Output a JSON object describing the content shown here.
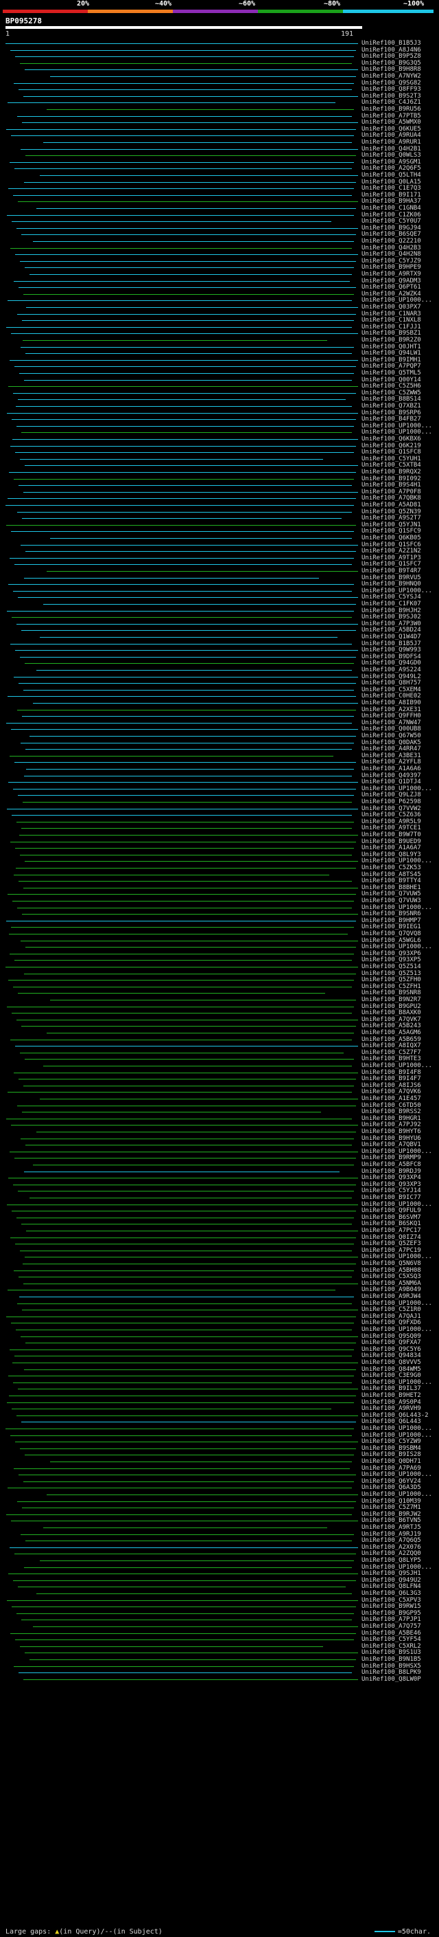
{
  "legend": {
    "percent_labels": [
      "20%",
      "~40%",
      "~60%",
      "~80%",
      "~100%"
    ],
    "colors": [
      "#d81e1e",
      "#f07c1e",
      "#8c2bb4",
      "#1aa01a",
      "#1ec6e6"
    ]
  },
  "query": {
    "id": "BP095278",
    "start": "1",
    "end": "191"
  },
  "colors": {
    "cyan": "#1ec6e6",
    "green": "#21b021"
  },
  "hits": [
    "UniRef100_B1B5J3",
    "UniRef100_A8J4N6",
    "UniRef100_B9P5Z8",
    "UniRef100_B9G3Q5",
    "UniRef100_B9H8R8",
    "UniRef100_A7NYW2",
    "UniRef100_Q9SG82",
    "UniRef100_Q8FF93",
    "UniRef100_B9S2T3",
    "UniRef100_C4J6Z1",
    "UniRef100_B9RU56",
    "UniRef100_A7PTB5",
    "UniRef100_A5WMX0",
    "UniRef100_Q6KUE5",
    "UniRef100_A9RUA4",
    "UniRef100_A9RUR1",
    "UniRef100_Q4H2B1",
    "UniRef100_Q0WLS3",
    "UniRef100_A9SGM1",
    "UniRef100_A2Q6F5",
    "UniRef100_Q5LTH4",
    "UniRef100_Q0LA15",
    "UniRef100_C1E7Q3",
    "UniRef100_B9I171",
    "UniRef100_B9HA37",
    "UniRef100_C1GNB4",
    "UniRef100_C1ZK06",
    "UniRef100_C5Y0U7",
    "UniRef100_B9GJ94",
    "UniRef100_B6SQE7",
    "UniRef100_Q2Z210",
    "UniRef100_Q4H2B3",
    "UniRef100_Q4H2N8",
    "UniRef100_C5YJZ9",
    "UniRef100_B9HPE9",
    "UniRef100_A9RTX9",
    "UniRef100_Q9ADM3",
    "UniRef100_Q6PT61",
    "UniRef100_A2WZK4",
    "UniRef100_UP1000...",
    "UniRef100_Q03PX7",
    "UniRef100_C1NAR3",
    "UniRef100_C1NXL8",
    "UniRef100_C1FJJ1",
    "UniRef100_B9SBZ1",
    "UniRef100_B9R2Z0",
    "UniRef100_Q0JHT1",
    "UniRef100_Q94LW1",
    "UniRef100_B9IMH1",
    "UniRef100_A7PQP7",
    "UniRef100_Q5TML5",
    "UniRef100_Q00Y14",
    "UniRef100_C5Z5H6",
    "UniRef100_C5ZWW5",
    "UniRef100_B8BS14",
    "UniRef100_Q7XBZ1",
    "UniRef100_B9SRP6",
    "UniRef100_B4FB27",
    "UniRef100_UP1000...",
    "UniRef100_UP1000...",
    "UniRef100_Q6KBX6",
    "UniRef100_Q6K219",
    "UniRef100_Q1SFC8",
    "UniRef100_C5YUH1",
    "UniRef100_C5XTB4",
    "UniRef100_B9RQX2",
    "UniRef100_B9I092",
    "UniRef100_B9S4H1",
    "UniRef100_A7P0F8",
    "UniRef100_A7QBK8",
    "UniRef100_A5AD81",
    "UniRef100_Q5ZN39",
    "UniRef100_A9S2T7",
    "UniRef100_Q5YJN1",
    "UniRef100_Q1SFC9",
    "UniRef100_Q6KB05",
    "UniRef100_Q1SFC6",
    "UniRef100_A2Z1N2",
    "UniRef100_A9T1P3",
    "UniRef100_Q1SFC7",
    "UniRef100_B9T4R7",
    "UniRef100_B9RVU5",
    "UniRef100_B9HNQ0",
    "UniRef100_UP1000...",
    "UniRef100_C5YSJ4",
    "UniRef100_C1FK07",
    "UniRef100_B9HJH2",
    "UniRef100_B9SJ02",
    "UniRef100_A7P3W0",
    "UniRef100_A5BD24",
    "UniRef100_Q1W4D7",
    "UniRef100_B1B5J7",
    "UniRef100_Q9W993",
    "UniRef100_B9DFS4",
    "UniRef100_Q94GD0",
    "UniRef100_A9S224",
    "UniRef100_Q949L2",
    "UniRef100_Q8H757",
    "UniRef100_C5XEM4",
    "UniRef100_C0HE02",
    "UniRef100_A8IB90",
    "UniRef100_A2XE31",
    "UniRef100_Q9FFH0",
    "UniRef100_A7NW47",
    "UniRef100_Q00UB8",
    "UniRef100_Q67W50",
    "UniRef100_Q0DAK5",
    "UniRef100_A4RR47",
    "UniRef100_A3BE31",
    "UniRef100_A2YFL8",
    "UniRef100_A1A6A6",
    "UniRef100_Q49397",
    "UniRef100_Q1DTJ4",
    "UniRef100_UP1000...",
    "UniRef100_Q9LZJ8",
    "UniRef100_P62598",
    "UniRef100_Q7VVW2",
    "UniRef100_C5Z636",
    "UniRef100_A9R5L9",
    "UniRef100_A9TCE1",
    "UniRef100_B9W7T0",
    "UniRef100_B9UED9",
    "UniRef100_A1A6A7",
    "UniRef100_Q8L9Y3",
    "UniRef100_UP1000...",
    "UniRef100_C5ZK53",
    "UniRef100_A8TS45",
    "UniRef100_B9TTY4",
    "UniRef100_B8BHE1",
    "UniRef100_Q7VUW5",
    "UniRef100_Q7VUW3",
    "UniRef100_UP1000...",
    "UniRef100_B9SNR6",
    "UniRef100_B9HMP7",
    "UniRef100_B9IEG1",
    "UniRef100_Q7QVQ8",
    "UniRef100_A5WGL6",
    "UniRef100_UP1000...",
    "UniRef100_Q93XP6",
    "UniRef100_Q93XP5",
    "UniRef100_Q5Z514",
    "UniRef100_Q5Z513",
    "UniRef100_Q5ZFH0",
    "UniRef100_C5ZFH1",
    "UniRef100_B9SNR8",
    "UniRef100_B9N2R7",
    "UniRef100_B9GPU2",
    "UniRef100_B8AXK0",
    "UniRef100_A7QVK7",
    "UniRef100_A5B243",
    "UniRef100_A5AGM6",
    "UniRef100_A5B659",
    "UniRef100_A8IQX7",
    "UniRef100_C5Z7F7",
    "UniRef100_B9HTE3",
    "UniRef100_UP1000...",
    "UniRef100_B9I4F8",
    "UniRef100_B9I4F7",
    "UniRef100_A8IJS6",
    "UniRef100_A7QVK6",
    "UniRef100_A1E457",
    "UniRef100_C6TD50",
    "UniRef100_B9RSS2",
    "UniRef100_B9HGR1",
    "UniRef100_A7PJ92",
    "UniRef100_B9HYT6",
    "UniRef100_B9HYU6",
    "UniRef100_A7QBV1",
    "UniRef100_UP1000...",
    "UniRef100_B9RMP9",
    "UniRef100_A5BFC8",
    "UniRef100_B9RDJ9",
    "UniRef100_Q93XP4",
    "UniRef100_Q93XP3",
    "UniRef100_C5YJ14",
    "UniRef100_B9IC77",
    "UniRef100_UP1000...",
    "UniRef100_Q9FUL9",
    "UniRef100_B6SVM7",
    "UniRef100_B6SKQ1",
    "UniRef100_A7PC17",
    "UniRef100_Q0IZ74",
    "UniRef100_Q5ZEF3",
    "UniRef100_A7PC19",
    "UniRef100_UP1000...",
    "UniRef100_Q5N6V8",
    "UniRef100_A5BH08",
    "UniRef100_C5XSQ3",
    "UniRef100_A5NM6A",
    "UniRef100_A9B049",
    "UniRef100_A9RJW4",
    "UniRef100_UP1000...",
    "UniRef100_C5Z1R0",
    "UniRef100_A7QAJ1",
    "UniRef100_Q9FXD6",
    "UniRef100_UP1000...",
    "UniRef100_Q9SQ09",
    "UniRef100_Q9FXA7",
    "UniRef100_Q9C5Y6",
    "UniRef100_Q94834",
    "UniRef100_Q8VVV5",
    "UniRef100_Q84WM5",
    "UniRef100_C3E9G0",
    "UniRef100_UP1000...",
    "UniRef100_B9IL37",
    "UniRef100_B9HET2",
    "UniRef100_A9S0P4",
    "UniRef100_A9RVH9",
    "UniRef100_Q6L443-2",
    "UniRef100_Q6L443",
    "UniRef100_UP1000...",
    "UniRef100_UP1000...",
    "UniRef100_C5YZW9",
    "UniRef100_B9SBM4",
    "UniRef100_B9IS28",
    "UniRef100_Q0DH71",
    "UniRef100_A7PA69",
    "UniRef100_UP1000...",
    "UniRef100_Q6YV24",
    "UniRef100_Q6A3D5",
    "UniRef100_UP1000...",
    "UniRef100_Q10M39",
    "UniRef100_C5Z7M1",
    "UniRef100_B9RJW2",
    "UniRef100_B6TVN5",
    "UniRef100_A9RTJ5",
    "UniRef100_A9RJ19",
    "UniRef100_A7Q6Q5",
    "UniRef100_A2X076",
    "UniRef100_A2ZQQ0",
    "UniRef100_Q8LYP5",
    "UniRef100_UP1000...",
    "UniRef100_Q9SJH1",
    "UniRef100_Q949U2",
    "UniRef100_Q8LFN4",
    "UniRef100_Q6L3G3",
    "UniRef100_C5XPV3",
    "UniRef100_B9RW15",
    "UniRef100_B9GP95",
    "UniRef100_A7PJP1",
    "UniRef100_A7Q757",
    "UniRef100_A5BE46",
    "UniRef100_C5YF54",
    "UniRef100_C5XRL2",
    "UniRef100_B9S1U3",
    "UniRef100_B9N1B5",
    "UniRef100_B9HSX5",
    "UniRef100_B8LPK9",
    "UniRef100_Q8LW0P"
  ],
  "footer": {
    "left_text": "Large gaps: ",
    "gap_desc": "(in Query)/--(in Subject)",
    "scale_text": "=50char."
  }
}
